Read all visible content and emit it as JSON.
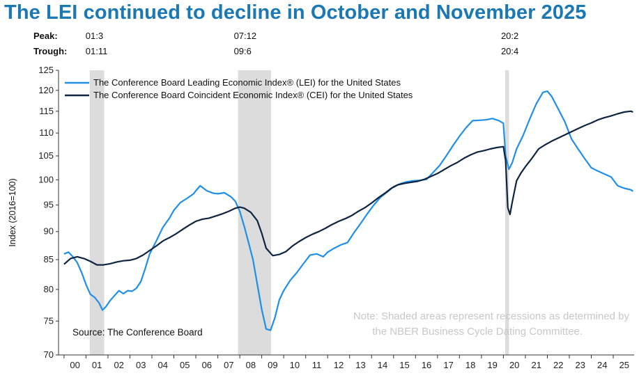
{
  "title": "The LEI continued to decline in October and November 2025",
  "peak_label": "Peak:",
  "trough_label": "Trough:",
  "recessions": [
    {
      "peak": "01:3",
      "trough": "01:11",
      "start": 2001.17,
      "end": 2001.83
    },
    {
      "peak": "07:12",
      "trough": "09:6",
      "start": 2007.92,
      "end": 2009.42
    },
    {
      "peak": "20:2",
      "trough": "20:4",
      "start": 2020.08,
      "end": 2020.25
    }
  ],
  "source": "Source: The Conference Board",
  "note_line1": "Note: Shaded areas represent recessions as determined by",
  "note_line2": "the NBER Business Cycle Dating Committee.",
  "chart_data": {
    "type": "line",
    "ylabel": "Index (2016=100)",
    "ylim": [
      70,
      125
    ],
    "yscale": "log",
    "yticks": [
      70,
      75,
      80,
      85,
      90,
      95,
      100,
      105,
      110,
      115,
      120,
      125
    ],
    "xlim": [
      1999.75,
      2025.95
    ],
    "xticks": [
      "00",
      "01",
      "02",
      "03",
      "04",
      "05",
      "06",
      "07",
      "08",
      "09",
      "10",
      "11",
      "12",
      "13",
      "14",
      "15",
      "16",
      "17",
      "18",
      "19",
      "20",
      "21",
      "22",
      "23",
      "24",
      "25"
    ],
    "legend": "top-left",
    "series": [
      {
        "name": "The Conference Board Leading Economic Index® (LEI) for the United States",
        "color": "#1f8fe8",
        "x": [
          2000.0,
          2000.2,
          2000.4,
          2000.6,
          2000.8,
          2001.0,
          2001.2,
          2001.4,
          2001.6,
          2001.75,
          2001.9,
          2002.1,
          2002.3,
          2002.5,
          2002.7,
          2002.9,
          2003.1,
          2003.3,
          2003.5,
          2003.7,
          2003.9,
          2004.2,
          2004.5,
          2004.8,
          2005.0,
          2005.3,
          2005.6,
          2005.9,
          2006.0,
          2006.2,
          2006.5,
          2006.8,
          2007.0,
          2007.3,
          2007.6,
          2007.8,
          2008.0,
          2008.2,
          2008.4,
          2008.6,
          2008.8,
          2009.0,
          2009.2,
          2009.4,
          2009.6,
          2009.8,
          2010.0,
          2010.3,
          2010.6,
          2010.9,
          2011.2,
          2011.5,
          2011.8,
          2012.0,
          2012.3,
          2012.6,
          2012.9,
          2013.2,
          2013.5,
          2013.8,
          2014.1,
          2014.4,
          2014.7,
          2015.0,
          2015.3,
          2015.6,
          2015.9,
          2016.2,
          2016.5,
          2016.8,
          2017.1,
          2017.4,
          2017.7,
          2018.0,
          2018.3,
          2018.6,
          2018.9,
          2019.2,
          2019.5,
          2019.8,
          2020.0,
          2020.1,
          2020.25,
          2020.4,
          2020.6,
          2020.9,
          2021.2,
          2021.5,
          2021.8,
          2022.0,
          2022.2,
          2022.5,
          2022.8,
          2023.1,
          2023.4,
          2023.7,
          2024.0,
          2024.3,
          2024.6,
          2024.9,
          2025.2,
          2025.5,
          2025.8,
          2025.9
        ],
        "values": [
          86.0,
          86.3,
          85.5,
          84.5,
          82.8,
          80.8,
          79.2,
          78.7,
          77.8,
          76.7,
          77.2,
          78.2,
          79.0,
          79.8,
          79.3,
          79.8,
          79.7,
          80.2,
          81.3,
          83.5,
          86.0,
          88.3,
          90.8,
          92.5,
          94.0,
          95.5,
          96.3,
          97.2,
          97.8,
          98.8,
          97.8,
          97.3,
          97.2,
          97.4,
          96.6,
          95.7,
          93.8,
          91.0,
          88.0,
          85.0,
          80.8,
          76.8,
          73.8,
          73.6,
          75.5,
          78.3,
          79.8,
          81.5,
          82.8,
          84.3,
          85.8,
          86.0,
          85.5,
          86.3,
          87.0,
          87.6,
          88.0,
          89.8,
          91.5,
          93.3,
          95.0,
          96.5,
          97.5,
          98.6,
          99.2,
          99.6,
          99.8,
          99.9,
          100.1,
          101.5,
          103.0,
          105.0,
          107.2,
          109.3,
          111.2,
          112.8,
          112.9,
          113.0,
          113.3,
          112.8,
          112.2,
          105.0,
          102.2,
          103.5,
          106.5,
          109.5,
          113.2,
          116.8,
          119.5,
          119.8,
          118.5,
          115.5,
          112.5,
          108.7,
          106.5,
          104.4,
          102.5,
          101.8,
          101.2,
          100.6,
          98.8,
          98.3,
          98.0,
          97.7
        ]
      },
      {
        "name": "The Conference Board Coincident Economic Index® (CEI) for the United States",
        "color": "#0e2440",
        "x": [
          2000.0,
          2000.3,
          2000.6,
          2000.9,
          2001.2,
          2001.5,
          2001.8,
          2002.1,
          2002.4,
          2002.7,
          2003.0,
          2003.3,
          2003.6,
          2003.9,
          2004.2,
          2004.5,
          2004.8,
          2005.1,
          2005.4,
          2005.7,
          2006.0,
          2006.3,
          2006.6,
          2006.9,
          2007.2,
          2007.5,
          2007.8,
          2008.0,
          2008.2,
          2008.5,
          2008.8,
          2009.0,
          2009.2,
          2009.5,
          2009.8,
          2010.1,
          2010.4,
          2010.7,
          2011.0,
          2011.3,
          2011.6,
          2011.9,
          2012.2,
          2012.5,
          2012.8,
          2013.1,
          2013.4,
          2013.7,
          2014.0,
          2014.3,
          2014.6,
          2014.9,
          2015.2,
          2015.5,
          2015.8,
          2016.1,
          2016.4,
          2016.7,
          2017.0,
          2017.3,
          2017.6,
          2017.9,
          2018.2,
          2018.5,
          2018.8,
          2019.1,
          2019.4,
          2019.7,
          2020.0,
          2020.1,
          2020.2,
          2020.3,
          2020.4,
          2020.6,
          2020.8,
          2021.0,
          2021.3,
          2021.6,
          2021.9,
          2022.2,
          2022.5,
          2022.8,
          2023.1,
          2023.4,
          2023.7,
          2024.0,
          2024.3,
          2024.6,
          2024.9,
          2025.2,
          2025.5,
          2025.8,
          2025.9
        ],
        "values": [
          84.2,
          85.2,
          85.5,
          85.2,
          84.7,
          84.1,
          84.1,
          84.3,
          84.6,
          84.8,
          84.9,
          85.2,
          85.8,
          86.6,
          87.4,
          88.3,
          88.9,
          89.6,
          90.4,
          91.2,
          91.9,
          92.3,
          92.5,
          92.9,
          93.3,
          93.8,
          94.4,
          94.6,
          94.4,
          93.6,
          92.0,
          89.7,
          87.0,
          85.7,
          85.9,
          86.4,
          87.4,
          88.2,
          88.9,
          89.5,
          90.0,
          90.6,
          91.3,
          91.9,
          92.4,
          93.0,
          93.8,
          94.5,
          95.4,
          96.4,
          97.3,
          98.3,
          99.0,
          99.3,
          99.5,
          99.7,
          100.1,
          100.7,
          101.3,
          102.1,
          102.9,
          103.6,
          104.5,
          105.2,
          105.8,
          106.1,
          106.5,
          106.8,
          107.0,
          104.0,
          94.5,
          93.2,
          95.5,
          99.8,
          101.4,
          102.7,
          104.5,
          106.5,
          107.4,
          108.2,
          108.9,
          109.6,
          110.3,
          111.0,
          111.7,
          112.3,
          113.0,
          113.5,
          113.9,
          114.4,
          114.8,
          115.0,
          114.8
        ]
      }
    ]
  }
}
